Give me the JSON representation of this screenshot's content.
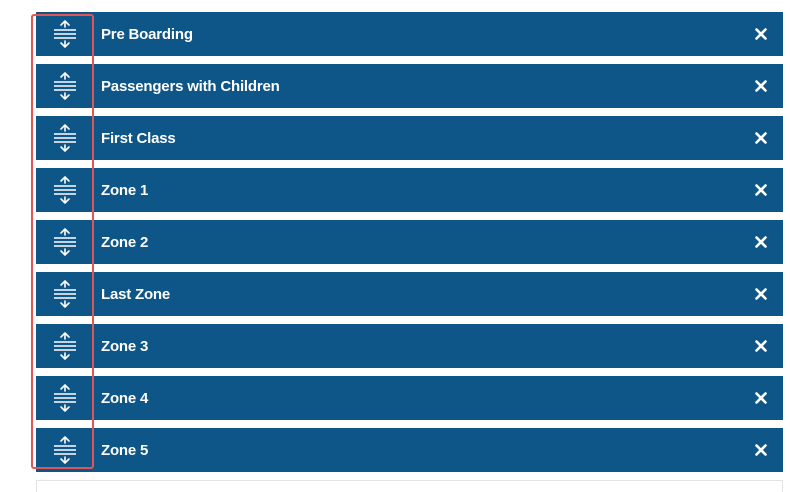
{
  "boarding_groups": [
    {
      "label": "Pre Boarding"
    },
    {
      "label": "Passengers with Children"
    },
    {
      "label": "First Class"
    },
    {
      "label": "Zone 1"
    },
    {
      "label": "Zone 2"
    },
    {
      "label": "Last Zone"
    },
    {
      "label": "Zone 3"
    },
    {
      "label": "Zone 4"
    },
    {
      "label": "Zone 5"
    }
  ],
  "icons": {
    "handle": "drag-handle-icon",
    "remove": "close-icon"
  },
  "add": {
    "placeholder": ""
  },
  "colors": {
    "row_background": "#0e5588",
    "row_text": "#ffffff",
    "highlight_border": "#e05555"
  }
}
